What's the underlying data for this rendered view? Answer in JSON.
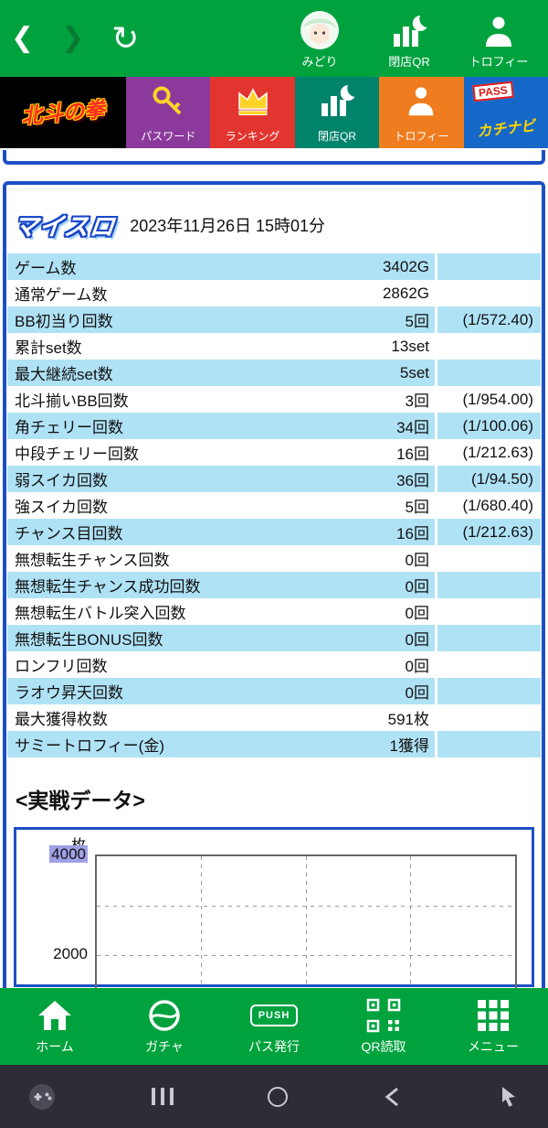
{
  "header": {
    "icons": {
      "back": "❮",
      "forward": "❯",
      "refresh": "↻"
    },
    "items": [
      {
        "label": "みどり"
      },
      {
        "label": "閉店QR"
      },
      {
        "label": "トロフィー"
      }
    ]
  },
  "tiles": [
    {
      "label": "北斗の拳"
    },
    {
      "label": "パスワード"
    },
    {
      "label": "ランキング"
    },
    {
      "label": "閉店QR"
    },
    {
      "label": "トロフィー"
    },
    {
      "label": "カチナビ",
      "pass_label": "PASS"
    }
  ],
  "myslo": {
    "logo": "マイスロ",
    "datetime": "2023年11月26日 15時01分"
  },
  "table": {
    "rows": [
      {
        "label": "ゲーム数",
        "value": "3402G",
        "ratio": ""
      },
      {
        "label": "通常ゲーム数",
        "value": "2862G",
        "ratio": ""
      },
      {
        "label": "BB初当り回数",
        "value": "5回",
        "ratio": "(1/572.40)"
      },
      {
        "label": "累計set数",
        "value": "13set",
        "ratio": ""
      },
      {
        "label": "最大継続set数",
        "value": "5set",
        "ratio": ""
      },
      {
        "label": "北斗揃いBB回数",
        "value": "3回",
        "ratio": "(1/954.00)"
      },
      {
        "label": "角チェリー回数",
        "value": "34回",
        "ratio": "(1/100.06)"
      },
      {
        "label": "中段チェリー回数",
        "value": "16回",
        "ratio": "(1/212.63)"
      },
      {
        "label": "弱スイカ回数",
        "value": "36回",
        "ratio": "(1/94.50)"
      },
      {
        "label": "強スイカ回数",
        "value": "5回",
        "ratio": "(1/680.40)"
      },
      {
        "label": "チャンス目回数",
        "value": "16回",
        "ratio": "(1/212.63)"
      },
      {
        "label": "無想転生チャンス回数",
        "value": "0回",
        "ratio": ""
      },
      {
        "label": "無想転生チャンス成功回数",
        "value": "0回",
        "ratio": ""
      },
      {
        "label": "無想転生バトル突入回数",
        "value": "0回",
        "ratio": ""
      },
      {
        "label": "無想転生BONUS回数",
        "value": "0回",
        "ratio": ""
      },
      {
        "label": "ロンフリ回数",
        "value": "0回",
        "ratio": ""
      },
      {
        "label": "ラオウ昇天回数",
        "value": "0回",
        "ratio": ""
      },
      {
        "label": "最大獲得枚数",
        "value": "591枚",
        "ratio": ""
      },
      {
        "label": "サミートロフィー(金)",
        "value": "1獲得",
        "ratio": ""
      }
    ]
  },
  "section": {
    "heading": "<実戦データ>"
  },
  "chart": {
    "unit": "枚",
    "ticks": [
      "4000",
      "2000"
    ]
  },
  "bottom_nav": {
    "items": [
      {
        "label": "ホーム"
      },
      {
        "label": "ガチャ"
      },
      {
        "label": "パス発行",
        "button_text": "PUSH"
      },
      {
        "label": "QR読取"
      },
      {
        "label": "メニュー"
      }
    ]
  }
}
